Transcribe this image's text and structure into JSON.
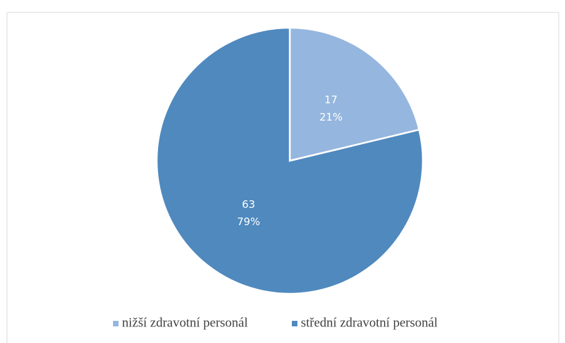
{
  "chart_data": {
    "type": "pie",
    "categories": [
      "nižší zdravotní personál",
      "střední zdravotní personál"
    ],
    "values": [
      17,
      63
    ],
    "percent_values": [
      21,
      79
    ],
    "percent_labels": [
      "21%",
      "79%"
    ],
    "colors": [
      "#95b6de",
      "#4f89be"
    ],
    "legend": "bottom"
  }
}
